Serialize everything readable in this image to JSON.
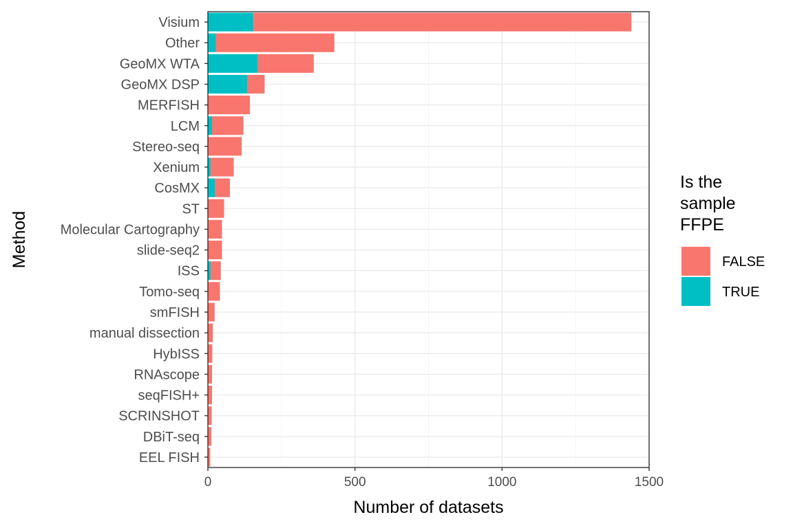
{
  "chart_data": {
    "type": "bar",
    "orientation": "horizontal",
    "stacked": true,
    "xlabel": "Number of datasets",
    "ylabel": "Method",
    "xlim": [
      0,
      1500
    ],
    "xticks": [
      0,
      500,
      1000,
      1500
    ],
    "grid": true,
    "legend_placement": "right",
    "legend_title_lines": [
      "Is the",
      "sample",
      "FFPE"
    ],
    "categories": [
      "Visium",
      "Other",
      "GeoMX WTA",
      "GeoMX DSP",
      "MERFISH",
      "LCM",
      "Stereo-seq",
      "Xenium",
      "CosMX",
      "ST",
      "Molecular Cartography",
      "slide-seq2",
      "ISS",
      "Tomo-seq",
      "smFISH",
      "manual dissection",
      "HybISS",
      "RNAscope",
      "seqFISH+",
      "SCRINSHOT",
      "DBiT-seq",
      "EEL FISH"
    ],
    "series": [
      {
        "name": "TRUE",
        "color": "#00BFC4",
        "values": [
          155,
          27,
          170,
          135,
          0,
          14,
          0,
          10,
          25,
          0,
          0,
          0,
          10,
          0,
          0,
          0,
          0,
          0,
          0,
          0,
          0,
          0
        ]
      },
      {
        "name": "FALSE",
        "color": "#F8766D",
        "values": [
          1285,
          403,
          190,
          58,
          143,
          107,
          115,
          78,
          50,
          55,
          48,
          48,
          34,
          41,
          23,
          17,
          15,
          14,
          14,
          13,
          12,
          8
        ]
      }
    ],
    "legend_order": [
      "FALSE",
      "TRUE"
    ]
  }
}
